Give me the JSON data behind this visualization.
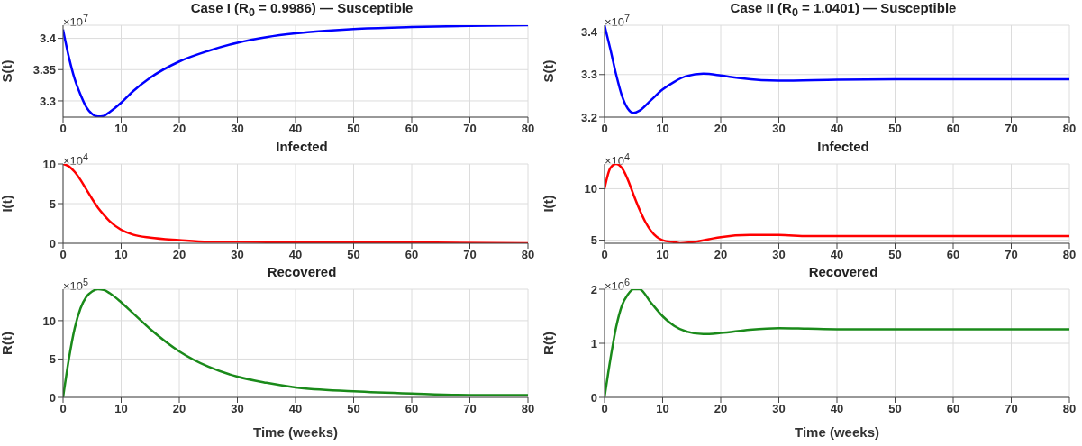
{
  "chart_data": [
    {
      "type": "line",
      "title": "Case I (R$_{0}$ = 0.9986) — Susceptible",
      "ylabel": "S(t)",
      "annotations": [
        "×10$^{7}$"
      ],
      "xlim": [
        0,
        80
      ],
      "xticks": [
        0,
        10,
        20,
        30,
        40,
        50,
        60,
        70,
        80
      ],
      "ylim": [
        3.274,
        3.421
      ],
      "yticks": [
        3.3,
        3.35,
        3.4
      ],
      "grid": true,
      "series": [
        {
          "color": "#0000ff",
          "x": [
            0,
            1,
            2,
            3,
            4,
            5,
            6,
            7,
            8,
            10,
            12,
            15,
            20,
            25,
            30,
            35,
            40,
            45,
            50,
            60,
            70,
            80
          ],
          "values": [
            3.414,
            3.37,
            3.335,
            3.31,
            3.29,
            3.279,
            3.275,
            3.276,
            3.282,
            3.297,
            3.315,
            3.337,
            3.363,
            3.38,
            3.393,
            3.402,
            3.408,
            3.412,
            3.415,
            3.418,
            3.42,
            3.421
          ]
        }
      ]
    },
    {
      "type": "line",
      "title": "Case II (R$_{0}$ = 1.0401) — Susceptible",
      "ylabel": "S(t)",
      "annotations": [
        "×10$^{7}$"
      ],
      "xlim": [
        0,
        80
      ],
      "xticks": [
        0,
        10,
        20,
        30,
        40,
        50,
        60,
        70,
        80
      ],
      "ylim": [
        3.2,
        3.416
      ],
      "yticks": [
        3.2,
        3.3,
        3.4
      ],
      "grid": true,
      "series": [
        {
          "color": "#0000ff",
          "x": [
            0,
            1,
            2,
            3,
            4,
            5,
            6,
            8,
            10,
            12,
            14,
            17,
            20,
            23,
            27,
            30,
            40,
            50,
            60,
            80
          ],
          "values": [
            3.416,
            3.36,
            3.3,
            3.25,
            3.22,
            3.21,
            3.215,
            3.24,
            3.265,
            3.283,
            3.296,
            3.302,
            3.298,
            3.292,
            3.287,
            3.286,
            3.288,
            3.289,
            3.289,
            3.289
          ]
        }
      ]
    },
    {
      "type": "line",
      "title": "Infected",
      "ylabel": "I(t)",
      "annotations": [
        "×10$^{4}$"
      ],
      "xlim": [
        0,
        80
      ],
      "xticks": [
        0,
        10,
        20,
        30,
        40,
        50,
        60,
        70,
        80
      ],
      "ylim": [
        0,
        10
      ],
      "yticks": [
        0,
        5,
        10
      ],
      "grid": true,
      "series": [
        {
          "color": "#ff0000",
          "x": [
            0,
            1,
            2,
            3,
            4,
            5,
            6,
            7,
            8,
            10,
            12,
            15,
            20,
            25,
            30,
            40,
            50,
            60,
            80
          ],
          "values": [
            10,
            9.7,
            9.0,
            8.0,
            6.8,
            5.6,
            4.5,
            3.6,
            2.8,
            1.7,
            1.1,
            0.7,
            0.4,
            0.2,
            0.2,
            0.1,
            0.1,
            0.1,
            0.0
          ]
        }
      ]
    },
    {
      "type": "line",
      "title": "Infected",
      "ylabel": "I(t)",
      "annotations": [
        "×10$^{4}$"
      ],
      "xlim": [
        0,
        80
      ],
      "xticks": [
        0,
        10,
        20,
        30,
        40,
        50,
        60,
        70,
        80
      ],
      "ylim": [
        4.7,
        12.4
      ],
      "yticks": [
        5,
        10
      ],
      "grid": true,
      "series": [
        {
          "color": "#ff0000",
          "x": [
            0,
            1,
            2,
            3,
            4,
            5,
            6,
            7,
            8,
            10,
            12,
            13,
            15,
            18,
            20,
            25,
            27,
            30,
            35,
            40,
            80
          ],
          "values": [
            10,
            12,
            12.4,
            12,
            10.9,
            9.4,
            8,
            6.8,
            5.9,
            5.0,
            4.8,
            4.7,
            4.8,
            5.1,
            5.3,
            5.5,
            5.5,
            5.5,
            5.4,
            5.4,
            5.4
          ]
        }
      ]
    },
    {
      "type": "line",
      "title": "Recovered",
      "ylabel": "R(t)",
      "xlabel": "Time (weeks)",
      "annotations": [
        "×10$^{5}$"
      ],
      "xlim": [
        0,
        80
      ],
      "xticks": [
        0,
        10,
        20,
        30,
        40,
        50,
        60,
        70,
        80
      ],
      "ylim": [
        0,
        14.1
      ],
      "yticks": [
        0,
        5,
        10
      ],
      "grid": true,
      "series": [
        {
          "color": "#1a8a1a",
          "x": [
            0,
            1,
            2,
            3,
            4,
            5,
            6,
            7,
            8,
            10,
            12,
            15,
            20,
            25,
            30,
            35,
            40,
            50,
            60,
            70,
            80
          ],
          "values": [
            0,
            5,
            9,
            11.6,
            13.1,
            13.8,
            14.1,
            14.0,
            13.6,
            12.4,
            11,
            8.9,
            6.0,
            4.0,
            2.7,
            1.9,
            1.3,
            0.8,
            0.5,
            0.3,
            0.3
          ]
        }
      ]
    },
    {
      "type": "line",
      "title": "Recovered",
      "ylabel": "R(t)",
      "xlabel": "Time (weeks)",
      "annotations": [
        "×10$^{6}$"
      ],
      "xlim": [
        0,
        80
      ],
      "xticks": [
        0,
        10,
        20,
        30,
        40,
        50,
        60,
        70,
        80
      ],
      "ylim": [
        0,
        2
      ],
      "yticks": [
        0,
        1,
        2
      ],
      "grid": true,
      "series": [
        {
          "color": "#1a8a1a",
          "x": [
            0,
            1,
            2,
            3,
            4,
            5,
            6,
            8,
            10,
            12,
            14,
            17,
            20,
            25,
            30,
            35,
            40,
            80
          ],
          "values": [
            0,
            0.7,
            1.3,
            1.7,
            1.9,
            2.0,
            2.0,
            1.75,
            1.5,
            1.32,
            1.22,
            1.17,
            1.19,
            1.25,
            1.28,
            1.27,
            1.26,
            1.26
          ]
        }
      ]
    }
  ]
}
